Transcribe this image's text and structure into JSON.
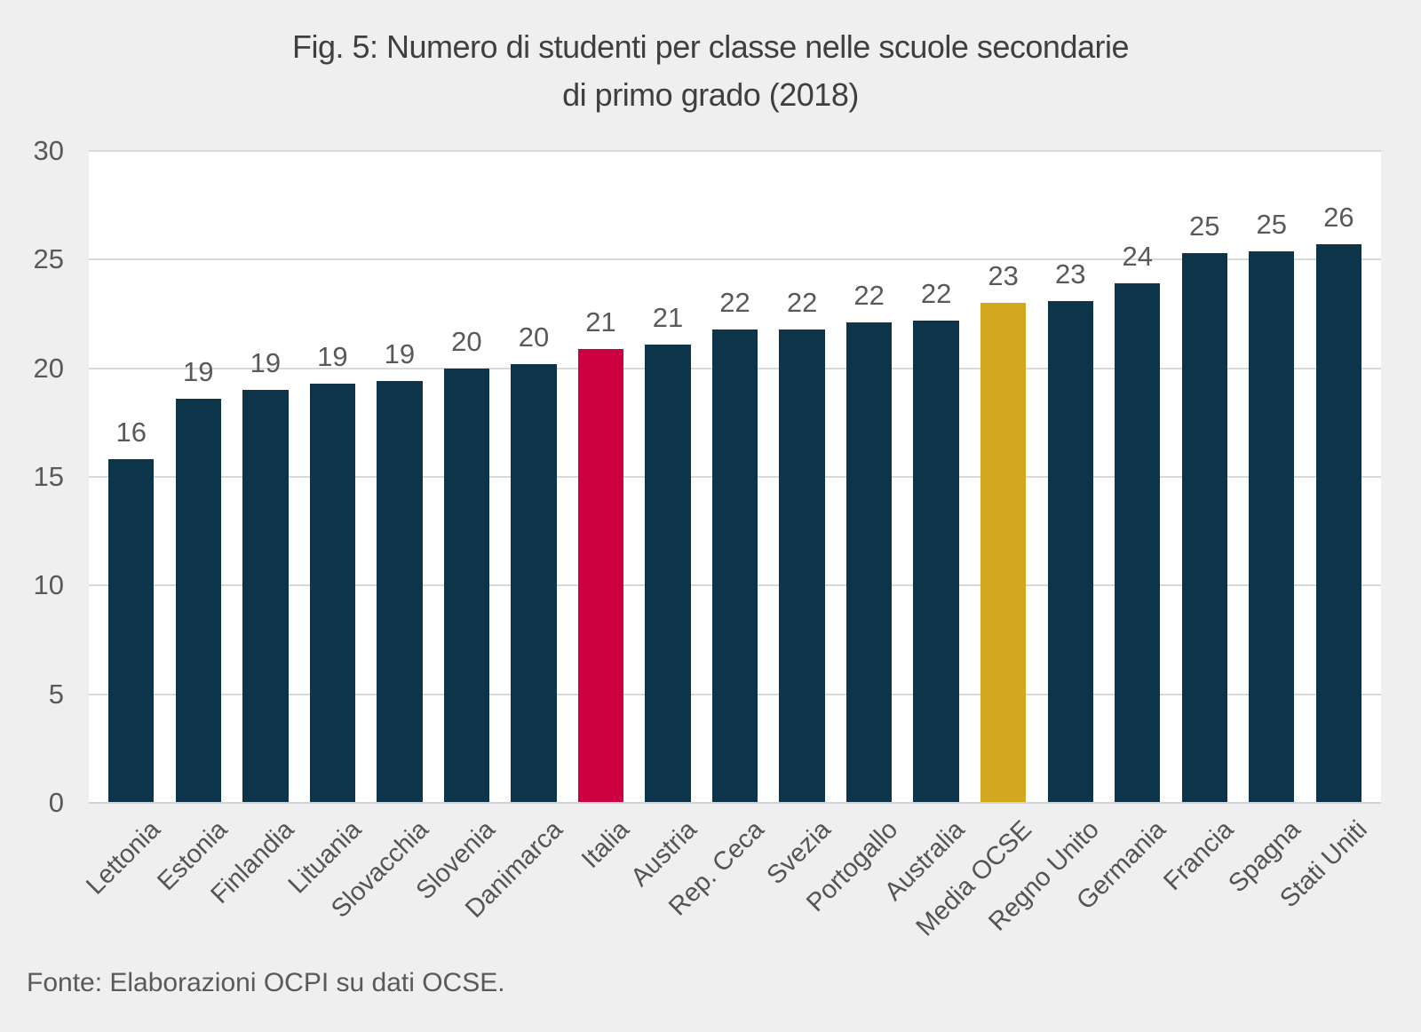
{
  "title": {
    "line1": "Fig. 5: Numero di studenti per classe nelle scuole secondarie",
    "line2": "di primo grado (2018)"
  },
  "source": "Fonte: Elaborazioni OCPI su dati OCSE.",
  "colors": {
    "background": "#efefef",
    "plot_background": "#ffffff",
    "gridline": "#d9d9d9",
    "bar_default": "#0d3449",
    "bar_italy": "#cc0040",
    "bar_oecd_average": "#d4a81e",
    "title_text": "#3f3f3f",
    "axis_text": "#595959"
  },
  "chart_data": {
    "type": "bar",
    "title": "Fig. 5: Numero di studenti per classe nelle scuole secondarie di primo grado (2018)",
    "xlabel": "",
    "ylabel": "",
    "ylim": [
      0,
      30
    ],
    "yticks": [
      0,
      5,
      10,
      15,
      20,
      25,
      30
    ],
    "grid": true,
    "legend": false,
    "categories": [
      "Lettonia",
      "Estonia",
      "Finlandia",
      "Lituania",
      "Slovacchia",
      "Slovenia",
      "Danimarca",
      "Italia",
      "Austria",
      "Rep. Ceca",
      "Svezia",
      "Portogallo",
      "Australia",
      "Media OCSE",
      "Regno Unito",
      "Germania",
      "Francia",
      "Spagna",
      "Stati Uniti"
    ],
    "values": [
      15.8,
      18.6,
      19.0,
      19.3,
      19.4,
      20.0,
      20.2,
      20.9,
      21.1,
      21.8,
      21.8,
      22.1,
      22.2,
      23.0,
      23.1,
      23.9,
      25.3,
      25.4,
      25.7
    ],
    "data_labels": [
      "16",
      "19",
      "19",
      "19",
      "19",
      "20",
      "20",
      "21",
      "21",
      "22",
      "22",
      "22",
      "22",
      "23",
      "23",
      "24",
      "25",
      "25",
      "26"
    ],
    "highlight": {
      "Italia": "#cc0040",
      "Media OCSE": "#d4a81e"
    }
  }
}
